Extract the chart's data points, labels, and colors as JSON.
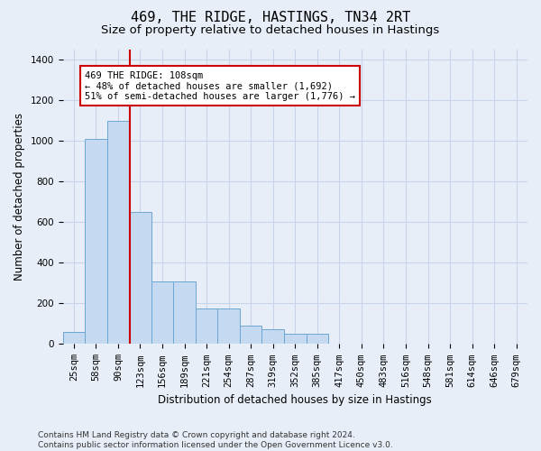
{
  "title": "469, THE RIDGE, HASTINGS, TN34 2RT",
  "subtitle": "Size of property relative to detached houses in Hastings",
  "xlabel": "Distribution of detached houses by size in Hastings",
  "ylabel": "Number of detached properties",
  "footnote": "Contains HM Land Registry data © Crown copyright and database right 2024.\nContains public sector information licensed under the Open Government Licence v3.0.",
  "bin_labels": [
    "25sqm",
    "58sqm",
    "90sqm",
    "123sqm",
    "156sqm",
    "189sqm",
    "221sqm",
    "254sqm",
    "287sqm",
    "319sqm",
    "352sqm",
    "385sqm",
    "417sqm",
    "450sqm",
    "483sqm",
    "516sqm",
    "548sqm",
    "581sqm",
    "614sqm",
    "646sqm",
    "679sqm"
  ],
  "bar_values": [
    60,
    1010,
    1100,
    650,
    310,
    310,
    175,
    175,
    90,
    75,
    50,
    50,
    0,
    0,
    0,
    0,
    0,
    0,
    0,
    0,
    0
  ],
  "bar_color": "#c5d9f0",
  "bar_edge_color": "#6ca6d4",
  "red_line_color": "#cc0000",
  "red_line_x": 2.545,
  "annotation_text": "469 THE RIDGE: 108sqm\n← 48% of detached houses are smaller (1,692)\n51% of semi-detached houses are larger (1,776) →",
  "annotation_box_facecolor": "#ffffff",
  "annotation_box_edgecolor": "#cc0000",
  "ylim": [
    0,
    1450
  ],
  "yticks": [
    0,
    200,
    400,
    600,
    800,
    1000,
    1200,
    1400
  ],
  "grid_color": "#c8d4e8",
  "background_color": "#e8eef8",
  "title_fontsize": 11,
  "subtitle_fontsize": 9.5,
  "axis_label_fontsize": 8.5,
  "tick_fontsize": 7.5,
  "annotation_fontsize": 7.5,
  "footnote_fontsize": 6.5
}
